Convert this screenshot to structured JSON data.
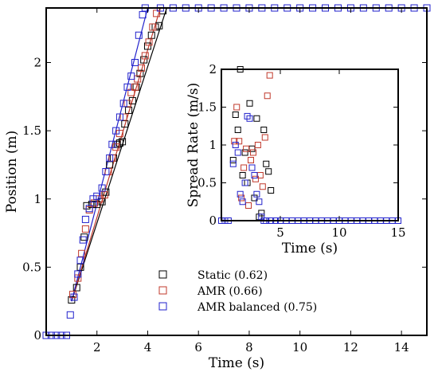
{
  "chart_data": [
    {
      "type": "scatter",
      "title": "",
      "xlabel": "Time (s)",
      "ylabel": "Position (m)",
      "xlim": [
        0,
        15
      ],
      "ylim": [
        0,
        2.4
      ],
      "xticks": [
        2,
        4,
        6,
        8,
        10,
        12,
        14
      ],
      "yticks": [
        0,
        0.5,
        1,
        1.5,
        2
      ],
      "tick_labels_x": [
        "2",
        "4",
        "6",
        "8",
        "10",
        "12",
        "14"
      ],
      "tick_labels_y": [
        "0",
        "0.5",
        "1",
        "1.5",
        "2"
      ],
      "legend_position": "bottom-right",
      "grid": false,
      "series": [
        {
          "name": "Static (0.62)",
          "color": "#000000",
          "marker": "open-square",
          "fit_line": [
            [
              1.0,
              0.25
            ],
            [
              4.75,
              2.4
            ]
          ],
          "points": [
            [
              1.0,
              0.26
            ],
            [
              1.2,
              0.35
            ],
            [
              1.35,
              0.5
            ],
            [
              1.5,
              0.72
            ],
            [
              1.6,
              0.95
            ],
            [
              1.8,
              0.96
            ],
            [
              2.0,
              0.96
            ],
            [
              2.2,
              0.98
            ],
            [
              2.35,
              1.05
            ],
            [
              2.5,
              1.25
            ],
            [
              2.65,
              1.3
            ],
            [
              2.8,
              1.4
            ],
            [
              2.9,
              1.41
            ],
            [
              3.0,
              1.42
            ],
            [
              3.1,
              1.55
            ],
            [
              3.25,
              1.65
            ],
            [
              3.4,
              1.72
            ],
            [
              3.55,
              1.82
            ],
            [
              3.7,
              1.92
            ],
            [
              3.85,
              2.02
            ],
            [
              4.0,
              2.12
            ],
            [
              4.15,
              2.2
            ],
            [
              4.3,
              2.26
            ],
            [
              4.45,
              2.27
            ],
            [
              4.6,
              2.38
            ]
          ]
        },
        {
          "name": "AMR (0.66)",
          "color": "#c0392b",
          "marker": "open-square",
          "fit_line": [
            [
              1.0,
              0.25
            ],
            [
              4.5,
              2.4
            ]
          ],
          "points": [
            [
              1.05,
              0.3
            ],
            [
              1.25,
              0.42
            ],
            [
              1.4,
              0.6
            ],
            [
              1.55,
              0.78
            ],
            [
              1.7,
              0.92
            ],
            [
              1.9,
              0.97
            ],
            [
              2.1,
              1.0
            ],
            [
              2.3,
              1.03
            ],
            [
              2.45,
              1.2
            ],
            [
              2.6,
              1.3
            ],
            [
              2.75,
              1.38
            ],
            [
              2.9,
              1.48
            ],
            [
              3.05,
              1.6
            ],
            [
              3.2,
              1.7
            ],
            [
              3.35,
              1.78
            ],
            [
              3.5,
              1.82
            ],
            [
              3.6,
              1.88
            ],
            [
              3.75,
              1.96
            ],
            [
              3.9,
              2.05
            ],
            [
              4.05,
              2.15
            ],
            [
              4.2,
              2.26
            ],
            [
              4.35,
              2.36
            ]
          ]
        },
        {
          "name": "AMR balanced (0.75)",
          "color": "#2222cc",
          "marker": "open-square",
          "fit_line": [
            [
              1.0,
              0.25
            ],
            [
              4.0,
              2.4
            ]
          ],
          "points": [
            [
              0.0,
              0.0
            ],
            [
              0.2,
              0.0
            ],
            [
              0.4,
              0.0
            ],
            [
              0.6,
              0.0
            ],
            [
              0.8,
              0.0
            ],
            [
              0.95,
              0.15
            ],
            [
              1.1,
              0.28
            ],
            [
              1.25,
              0.45
            ],
            [
              1.35,
              0.55
            ],
            [
              1.45,
              0.7
            ],
            [
              1.55,
              0.85
            ],
            [
              1.7,
              0.93
            ],
            [
              1.85,
              1.0
            ],
            [
              2.0,
              1.02
            ],
            [
              2.2,
              1.08
            ],
            [
              2.35,
              1.2
            ],
            [
              2.5,
              1.3
            ],
            [
              2.6,
              1.4
            ],
            [
              2.75,
              1.5
            ],
            [
              2.9,
              1.6
            ],
            [
              3.05,
              1.7
            ],
            [
              3.2,
              1.82
            ],
            [
              3.35,
              1.9
            ],
            [
              3.5,
              2.0
            ],
            [
              3.65,
              2.2
            ],
            [
              3.8,
              2.35
            ],
            [
              3.9,
              2.4
            ],
            [
              4.5,
              2.4
            ],
            [
              5.0,
              2.4
            ],
            [
              5.5,
              2.4
            ],
            [
              6.0,
              2.4
            ],
            [
              6.5,
              2.4
            ],
            [
              7.0,
              2.4
            ],
            [
              7.5,
              2.4
            ],
            [
              8.0,
              2.4
            ],
            [
              8.5,
              2.4
            ],
            [
              9.0,
              2.4
            ],
            [
              9.5,
              2.4
            ],
            [
              10.0,
              2.4
            ],
            [
              10.5,
              2.4
            ],
            [
              11.0,
              2.4
            ],
            [
              11.5,
              2.4
            ],
            [
              12.0,
              2.4
            ],
            [
              12.5,
              2.4
            ],
            [
              13.0,
              2.4
            ],
            [
              13.5,
              2.4
            ],
            [
              14.0,
              2.4
            ],
            [
              14.5,
              2.4
            ],
            [
              15.0,
              2.4
            ]
          ]
        }
      ]
    },
    {
      "type": "scatter",
      "title": "",
      "xlabel": "Time (s)",
      "ylabel": "Spread Rate (m/s)",
      "xlim": [
        0,
        15
      ],
      "ylim": [
        0,
        2
      ],
      "xticks": [
        5,
        10,
        15
      ],
      "yticks": [
        0,
        0.5,
        1,
        1.5,
        2
      ],
      "tick_labels_x": [
        "5",
        "10",
        "15"
      ],
      "tick_labels_y": [
        "0",
        "0.5",
        "1",
        "1.5",
        "2"
      ],
      "grid": false,
      "series": [
        {
          "name": "Static (0.62)",
          "color": "#000000",
          "points": [
            [
              1.0,
              0.8
            ],
            [
              1.2,
              1.4
            ],
            [
              1.4,
              1.2
            ],
            [
              1.6,
              2.0
            ],
            [
              1.8,
              0.6
            ],
            [
              2.0,
              0.9
            ],
            [
              2.2,
              0.5
            ],
            [
              2.4,
              1.55
            ],
            [
              2.6,
              0.95
            ],
            [
              2.8,
              0.3
            ],
            [
              3.0,
              1.35
            ],
            [
              3.2,
              0.05
            ],
            [
              3.4,
              0.1
            ],
            [
              3.6,
              1.2
            ],
            [
              3.8,
              0.75
            ],
            [
              4.0,
              0.65
            ],
            [
              4.2,
              0.4
            ]
          ]
        },
        {
          "name": "AMR (0.66)",
          "color": "#c0392b",
          "points": [
            [
              1.1,
              1.05
            ],
            [
              1.3,
              1.5
            ],
            [
              1.5,
              1.05
            ],
            [
              1.7,
              0.3
            ],
            [
              1.9,
              0.7
            ],
            [
              2.1,
              0.95
            ],
            [
              2.3,
              0.2
            ],
            [
              2.5,
              0.8
            ],
            [
              2.7,
              0.9
            ],
            [
              2.9,
              0.55
            ],
            [
              3.1,
              1.0
            ],
            [
              3.3,
              0.6
            ],
            [
              3.5,
              0.45
            ],
            [
              3.7,
              1.1
            ],
            [
              3.9,
              1.65
            ],
            [
              4.1,
              1.92
            ]
          ]
        },
        {
          "name": "AMR balanced (0.75)",
          "color": "#2222cc",
          "points": [
            [
              0.0,
              0.0
            ],
            [
              0.3,
              0.0
            ],
            [
              0.6,
              0.0
            ],
            [
              1.0,
              0.75
            ],
            [
              1.2,
              1.0
            ],
            [
              1.4,
              0.9
            ],
            [
              1.6,
              0.35
            ],
            [
              1.8,
              0.25
            ],
            [
              2.0,
              0.5
            ],
            [
              2.2,
              1.38
            ],
            [
              2.4,
              1.35
            ],
            [
              2.6,
              0.7
            ],
            [
              2.8,
              0.6
            ],
            [
              3.0,
              0.35
            ],
            [
              3.2,
              0.25
            ],
            [
              3.4,
              0.05
            ],
            [
              3.6,
              0.0
            ],
            [
              3.8,
              0.0
            ],
            [
              4.2,
              0.0
            ],
            [
              4.6,
              0.0
            ],
            [
              5.0,
              0.0
            ],
            [
              5.5,
              0.0
            ],
            [
              6.0,
              0.0
            ],
            [
              6.5,
              0.0
            ],
            [
              7.0,
              0.0
            ],
            [
              7.5,
              0.0
            ],
            [
              8.0,
              0.0
            ],
            [
              8.5,
              0.0
            ],
            [
              9.0,
              0.0
            ],
            [
              9.5,
              0.0
            ],
            [
              10.0,
              0.0
            ],
            [
              10.5,
              0.0
            ],
            [
              11.0,
              0.0
            ],
            [
              11.5,
              0.0
            ],
            [
              12.0,
              0.0
            ],
            [
              12.5,
              0.0
            ],
            [
              13.0,
              0.0
            ],
            [
              13.5,
              0.0
            ],
            [
              14.0,
              0.0
            ],
            [
              14.5,
              0.0
            ],
            [
              15.0,
              0.0
            ]
          ]
        }
      ]
    }
  ]
}
